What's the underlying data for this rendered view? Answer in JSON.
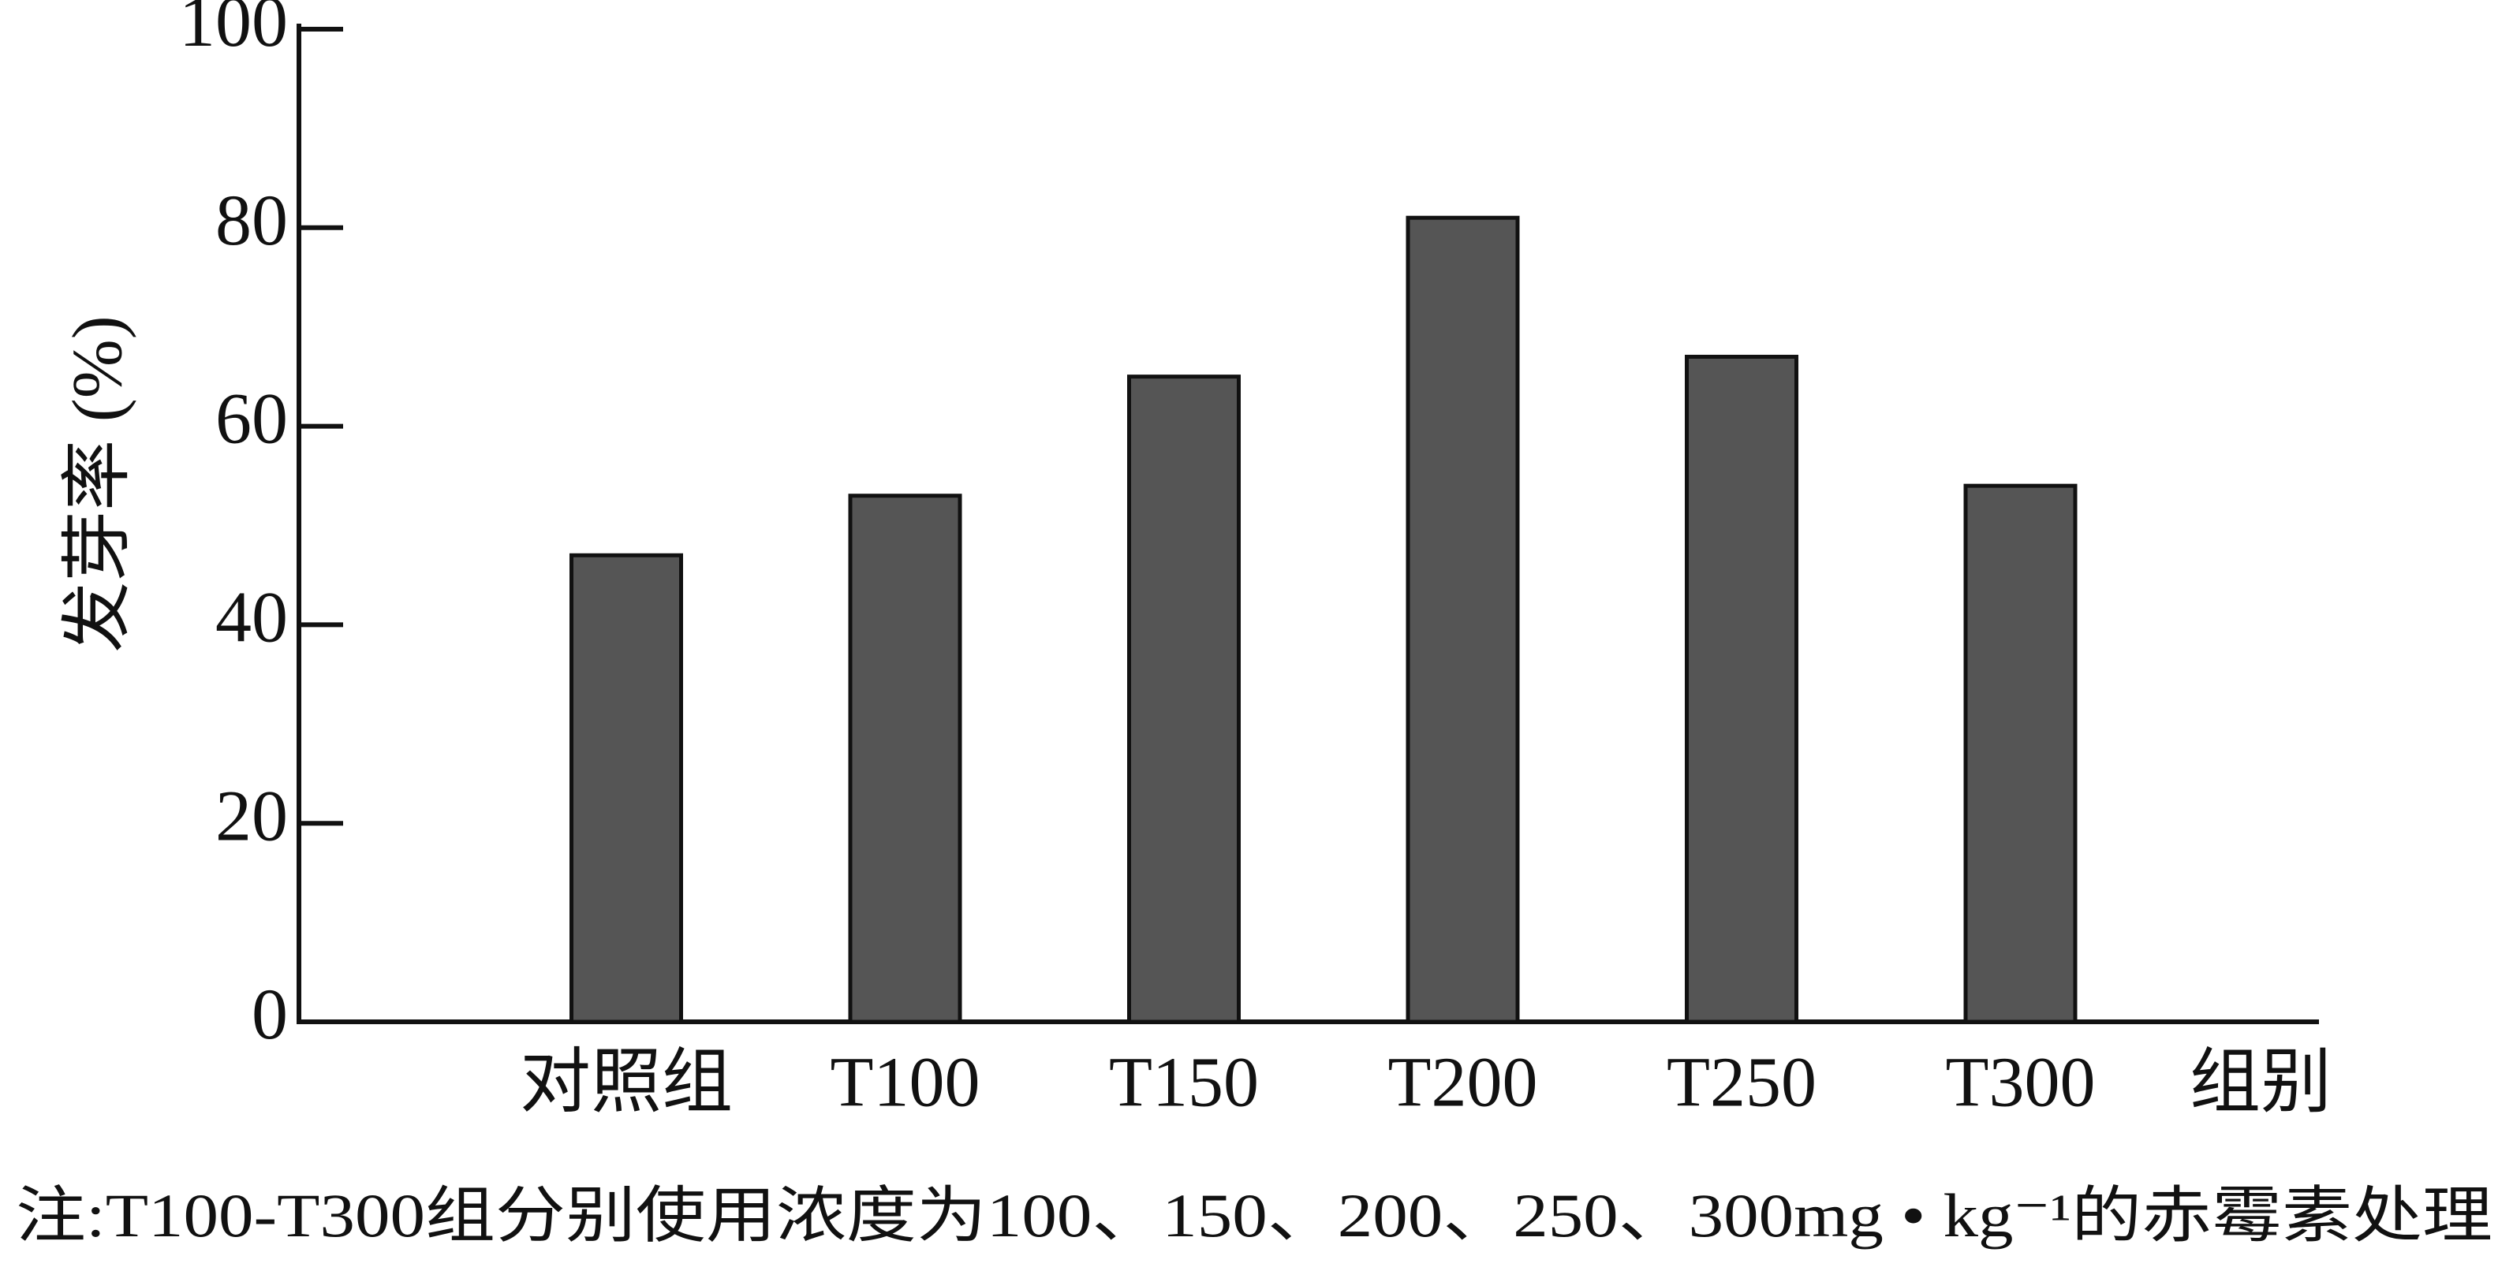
{
  "chart_data": {
    "type": "bar",
    "y_label": "发芽率 (%)",
    "x_label": "组别",
    "note": "注:T100-T300组分别使用浓度为100、150、200、250、300mg • kg⁻¹的赤霉素处理",
    "categories": [
      "对照组",
      "T100",
      "T150",
      "T200",
      "T250",
      "T300"
    ],
    "values": [
      47,
      53,
      65,
      81,
      67,
      54
    ],
    "color": "#555555",
    "ylim": [
      0,
      100
    ],
    "yticks": [
      0,
      20,
      40,
      60,
      80,
      100
    ],
    "grid": false
  }
}
